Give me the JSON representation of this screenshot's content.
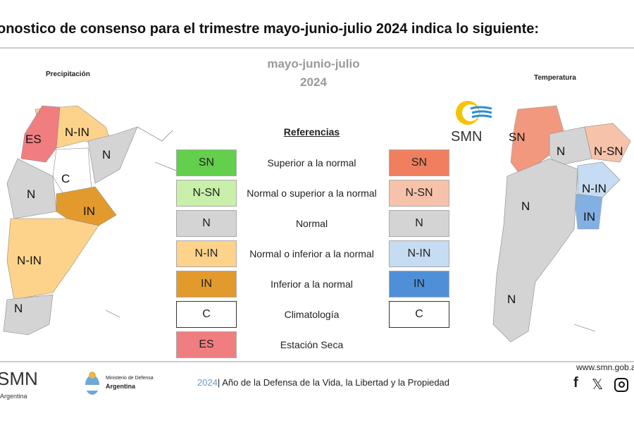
{
  "header": {
    "title": "onostico de consenso para el trimestre mayo-junio-julio 2024 indica lo siguiente:"
  },
  "period": {
    "months": "mayo-junio-julio",
    "year": "2024"
  },
  "maps": {
    "precipitation": {
      "title": "Precipitación",
      "labels": [
        "ES",
        "N-IN",
        "N",
        "C",
        "N",
        "IN",
        "N-IN",
        "N"
      ]
    },
    "temperature": {
      "title": "Temperatura",
      "labels": [
        "SN",
        "N",
        "N-SN",
        "N-IN",
        "N",
        "IN",
        "N"
      ]
    }
  },
  "legend": {
    "title": "Referencias",
    "rows": [
      {
        "precip": "SN",
        "precip_color": "#63cf4c",
        "label": "Superior a la normal",
        "temp": "SN",
        "temp_color": "#ef7f5f"
      },
      {
        "precip": "N-SN",
        "precip_color": "#c8f0aa",
        "label": "Normal o superior a la normal",
        "temp": "N-SN",
        "temp_color": "#f6c3aa"
      },
      {
        "precip": "N",
        "precip_color": "#d4d4d4",
        "label": "Normal",
        "temp": "N",
        "temp_color": "#d4d4d4"
      },
      {
        "precip": "N-IN",
        "precip_color": "#fdd38b",
        "label": "Normal o inferior a la normal",
        "temp": "N-IN",
        "temp_color": "#c6dcf2"
      },
      {
        "precip": "IN",
        "precip_color": "#e39a2d",
        "label": "Inferior a la normal",
        "temp": "IN",
        "temp_color": "#4e8fd8"
      },
      {
        "precip": "C",
        "precip_color": "#ffffff",
        "label": "Climatología",
        "temp": "C",
        "temp_color": "#ffffff"
      },
      {
        "precip": "ES",
        "precip_color": "#f07e80",
        "label": "Estación Seca"
      }
    ]
  },
  "logo": {
    "smn": "SMN"
  },
  "footer": {
    "smn": "SMN",
    "smn_sub": "Argentina",
    "ministry_line1": "Ministerio de Defensa",
    "ministry_line2": "Argentina",
    "year": "2024",
    "slogan": "| Año de la Defensa de la Vida, la Libertad y la Propiedad",
    "website": "www.smn.gob.ar"
  }
}
